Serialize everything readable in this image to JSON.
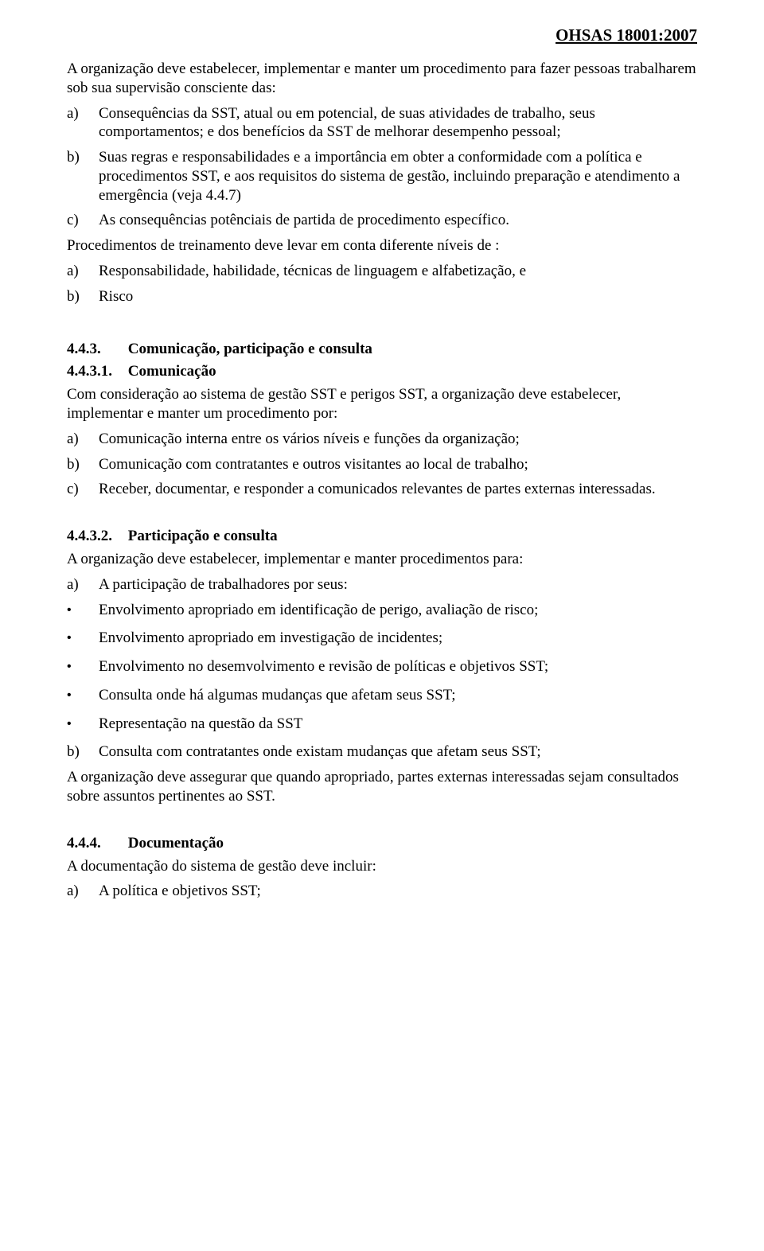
{
  "header": "OHSAS 18001:2007",
  "intro1": "A organização deve estabelecer, implementar e manter um procedimento para fazer pessoas trabalharem sob sua supervisão consciente das:",
  "list1": [
    {
      "m": "a)",
      "t": "Consequências da SST, atual ou em potencial, de suas atividades de trabalho, seus comportamentos; e dos benefícios da SST de melhorar desempenho pessoal;"
    },
    {
      "m": "b)",
      "t": "Suas regras e responsabilidades e a importância em obter a conformidade com a política e procedimentos SST, e aos requisitos do sistema de gestão, incluindo preparação e atendimento a emergência (veja 4.4.7)"
    },
    {
      "m": "c)",
      "t": "As consequências potênciais de partida de procedimento específico."
    }
  ],
  "intro2": "Procedimentos de treinamento deve levar em conta diferente níveis de :",
  "list2": [
    {
      "m": "a)",
      "t": "Responsabilidade, habilidade, técnicas de linguagem e alfabetização, e"
    },
    {
      "m": "b)",
      "t": "Risco"
    }
  ],
  "sec443": {
    "num": "4.4.3.",
    "title": "Comunicação, participação e consulta"
  },
  "sec4431": {
    "num": "4.4.3.1.",
    "title": "Comunicação"
  },
  "p4431": "Com consideração ao sistema de gestão SST e perigos SST, a organização deve estabelecer, implementar e manter um procedimento por:",
  "list3": [
    {
      "m": "a)",
      "t": "Comunicação interna entre os vários níveis e funções da organização;"
    },
    {
      "m": "b)",
      "t": "Comunicação com contratantes e outros visitantes ao local de trabalho;"
    },
    {
      "m": "c)",
      "t": "Receber, documentar, e responder a comunicados relevantes de partes externas interessadas."
    }
  ],
  "sec4432": {
    "num": "4.4.3.2.",
    "title": "Participação e consulta"
  },
  "p4432": "A organização deve estabelecer, implementar e manter procedimentos para:",
  "list4a": {
    "m": "a)",
    "t": "A participação de trabalhadores por seus:"
  },
  "bullets": [
    "Envolvimento apropriado em identificação de perigo, avaliação de risco;",
    "Envolvimento apropriado em investigação de incidentes;",
    "Envolvimento no desemvolvimento e revisão de políticas e objetivos SST;",
    "Consulta onde há algumas mudanças que afetam seus SST;",
    "Representação na questão da SST"
  ],
  "list4b": {
    "m": "b)",
    "t": "Consulta com contratantes onde existam mudanças que afetam seus SST;"
  },
  "p4432b": "A organização deve assegurar que quando apropriado, partes externas interessadas sejam consultados sobre assuntos pertinentes ao SST.",
  "sec444": {
    "num": "4.4.4.",
    "title": "Documentação"
  },
  "p444": "A documentação do sistema de gestão deve incluir:",
  "list5": [
    {
      "m": "a)",
      "t": "A política e objetivos SST;"
    }
  ]
}
